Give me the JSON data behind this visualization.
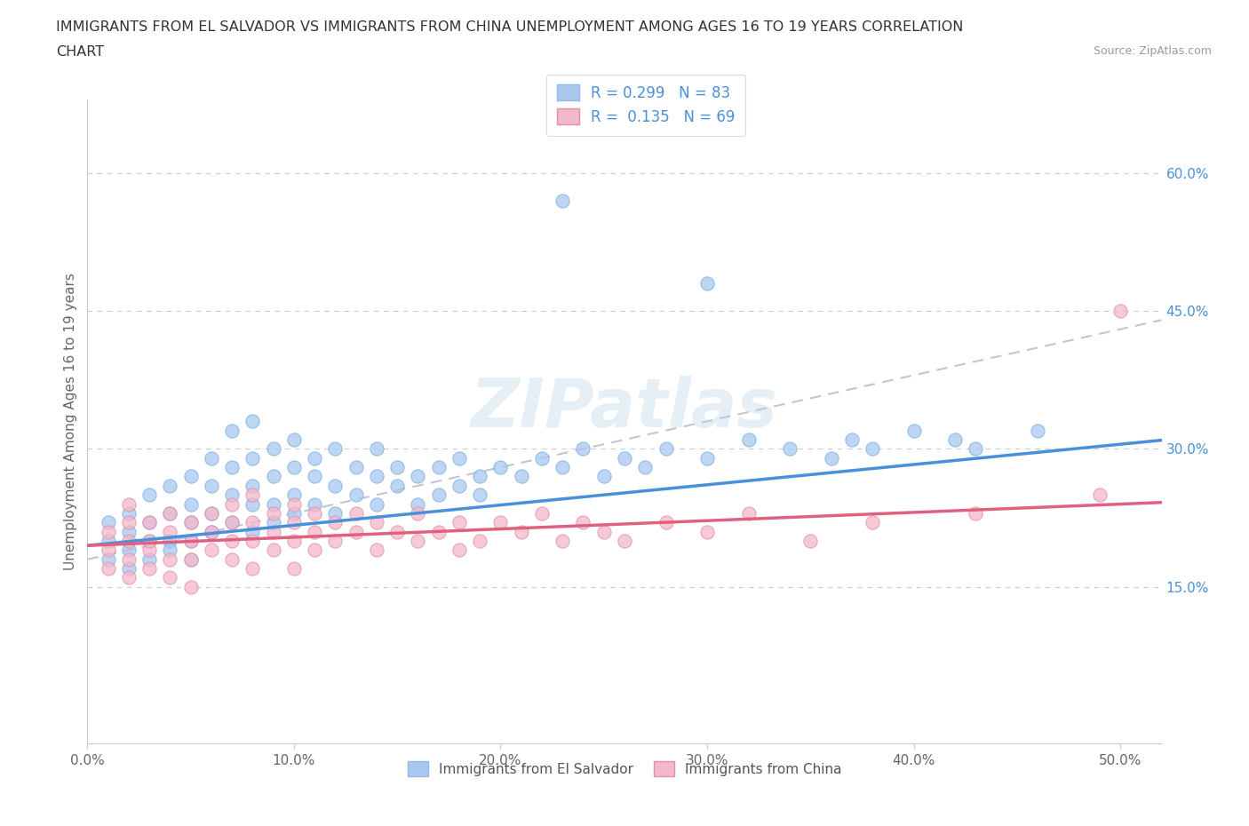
{
  "title_line1": "IMMIGRANTS FROM EL SALVADOR VS IMMIGRANTS FROM CHINA UNEMPLOYMENT AMONG AGES 16 TO 19 YEARS CORRELATION",
  "title_line2": "CHART",
  "source": "Source: ZipAtlas.com",
  "ylabel": "Unemployment Among Ages 16 to 19 years",
  "xlim": [
    0.0,
    0.52
  ],
  "ylim": [
    -0.02,
    0.68
  ],
  "xticks": [
    0.0,
    0.1,
    0.2,
    0.3,
    0.4,
    0.5
  ],
  "xticklabels": [
    "0.0%",
    "10.0%",
    "20.0%",
    "30.0%",
    "40.0%",
    "50.0%"
  ],
  "yticks_right": [
    0.15,
    0.3,
    0.45,
    0.6
  ],
  "ytick_right_labels": [
    "15.0%",
    "30.0%",
    "45.0%",
    "60.0%"
  ],
  "color_el_salvador": "#a8c8f0",
  "color_china": "#f5b8ca",
  "color_trend_el_salvador": "#4a90d9",
  "color_trend_china": "#e06080",
  "color_dashed": "#b0b8c8",
  "R_el_salvador": 0.299,
  "N_el_salvador": 83,
  "R_china": 0.135,
  "N_china": 69,
  "legend_label_1": "Immigrants from El Salvador",
  "legend_label_2": "Immigrants from China",
  "watermark": "ZIPatlas",
  "es_x": [
    0.01,
    0.01,
    0.01,
    0.02,
    0.02,
    0.02,
    0.02,
    0.03,
    0.03,
    0.03,
    0.03,
    0.04,
    0.04,
    0.04,
    0.04,
    0.05,
    0.05,
    0.05,
    0.05,
    0.05,
    0.06,
    0.06,
    0.06,
    0.06,
    0.07,
    0.07,
    0.07,
    0.07,
    0.08,
    0.08,
    0.08,
    0.08,
    0.08,
    0.09,
    0.09,
    0.09,
    0.09,
    0.1,
    0.1,
    0.1,
    0.1,
    0.11,
    0.11,
    0.11,
    0.12,
    0.12,
    0.12,
    0.13,
    0.13,
    0.14,
    0.14,
    0.14,
    0.15,
    0.15,
    0.16,
    0.16,
    0.17,
    0.17,
    0.18,
    0.18,
    0.19,
    0.19,
    0.2,
    0.21,
    0.22,
    0.23,
    0.24,
    0.25,
    0.26,
    0.27,
    0.28,
    0.3,
    0.32,
    0.34,
    0.36,
    0.37,
    0.38,
    0.4,
    0.42,
    0.43,
    0.46,
    0.23,
    0.3
  ],
  "es_y": [
    0.2,
    0.22,
    0.18,
    0.23,
    0.19,
    0.21,
    0.17,
    0.22,
    0.2,
    0.25,
    0.18,
    0.23,
    0.2,
    0.26,
    0.19,
    0.24,
    0.22,
    0.27,
    0.2,
    0.18,
    0.26,
    0.23,
    0.29,
    0.21,
    0.28,
    0.25,
    0.32,
    0.22,
    0.29,
    0.26,
    0.33,
    0.24,
    0.21,
    0.27,
    0.24,
    0.3,
    0.22,
    0.28,
    0.25,
    0.31,
    0.23,
    0.27,
    0.24,
    0.29,
    0.26,
    0.3,
    0.23,
    0.28,
    0.25,
    0.27,
    0.24,
    0.3,
    0.26,
    0.28,
    0.27,
    0.24,
    0.28,
    0.25,
    0.26,
    0.29,
    0.27,
    0.25,
    0.28,
    0.27,
    0.29,
    0.28,
    0.3,
    0.27,
    0.29,
    0.28,
    0.3,
    0.29,
    0.31,
    0.3,
    0.29,
    0.31,
    0.3,
    0.32,
    0.31,
    0.3,
    0.32,
    0.57,
    0.48
  ],
  "ch_x": [
    0.01,
    0.01,
    0.01,
    0.02,
    0.02,
    0.02,
    0.02,
    0.02,
    0.03,
    0.03,
    0.03,
    0.03,
    0.04,
    0.04,
    0.04,
    0.04,
    0.05,
    0.05,
    0.05,
    0.05,
    0.06,
    0.06,
    0.06,
    0.07,
    0.07,
    0.07,
    0.07,
    0.08,
    0.08,
    0.08,
    0.08,
    0.09,
    0.09,
    0.09,
    0.1,
    0.1,
    0.1,
    0.1,
    0.11,
    0.11,
    0.11,
    0.12,
    0.12,
    0.13,
    0.13,
    0.14,
    0.14,
    0.15,
    0.16,
    0.16,
    0.17,
    0.18,
    0.18,
    0.19,
    0.2,
    0.21,
    0.22,
    0.23,
    0.24,
    0.25,
    0.26,
    0.28,
    0.3,
    0.32,
    0.35,
    0.38,
    0.43,
    0.49,
    0.5
  ],
  "ch_y": [
    0.19,
    0.17,
    0.21,
    0.2,
    0.18,
    0.22,
    0.16,
    0.24,
    0.19,
    0.22,
    0.17,
    0.2,
    0.21,
    0.18,
    0.23,
    0.16,
    0.2,
    0.22,
    0.18,
    0.15,
    0.21,
    0.19,
    0.23,
    0.2,
    0.22,
    0.18,
    0.24,
    0.2,
    0.22,
    0.17,
    0.25,
    0.21,
    0.19,
    0.23,
    0.2,
    0.22,
    0.17,
    0.24,
    0.21,
    0.19,
    0.23,
    0.2,
    0.22,
    0.21,
    0.23,
    0.19,
    0.22,
    0.21,
    0.2,
    0.23,
    0.21,
    0.19,
    0.22,
    0.2,
    0.22,
    0.21,
    0.23,
    0.2,
    0.22,
    0.21,
    0.2,
    0.22,
    0.21,
    0.23,
    0.2,
    0.22,
    0.23,
    0.25,
    0.45
  ]
}
